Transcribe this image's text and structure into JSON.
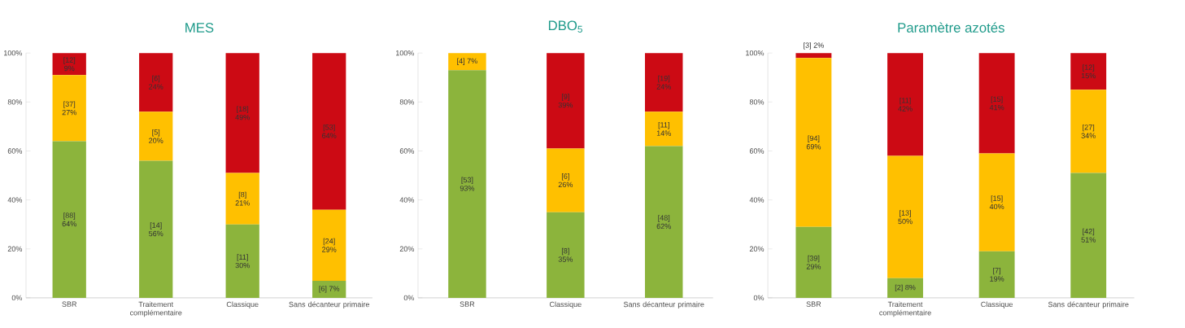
{
  "chart_data": [
    {
      "type": "bar",
      "title": "MES",
      "stacked": true,
      "categories": [
        "SBR",
        "Traitement complémentaire",
        "Classique",
        "Sans décanteur primaire"
      ],
      "ylim": [
        0,
        100
      ],
      "yticks": [
        {
          "value": 0,
          "label": "0%"
        },
        {
          "value": 20,
          "label": "20%"
        },
        {
          "value": 40,
          "label": "40%"
        },
        {
          "value": 60,
          "label": "60%"
        },
        {
          "value": 80,
          "label": "80%"
        },
        {
          "value": 100,
          "label": "100%"
        }
      ],
      "series": [
        {
          "color": "#8cb43c",
          "values": [
            64,
            56,
            30,
            7
          ],
          "value_labels": [
            "[88] 64%",
            "[14] 56%",
            "[11] 30%",
            "[6] 7%"
          ]
        },
        {
          "color": "#ffc000",
          "values": [
            27,
            20,
            21,
            29
          ],
          "value_labels": [
            "[37] 27%",
            "[5] 20%",
            "[8] 21%",
            "[24] 29%"
          ]
        },
        {
          "color": "#cc0a14",
          "values": [
            9,
            24,
            49,
            64
          ],
          "value_labels": [
            "[12] 9%",
            "[6] 24%",
            "[18] 49%",
            "[53] 64%"
          ]
        }
      ]
    },
    {
      "type": "bar",
      "title": "DBO$_{5}$",
      "stacked": true,
      "categories": [
        "SBR",
        "Classique",
        "Sans décanteur primaire"
      ],
      "ylim": [
        0,
        100
      ],
      "yticks": [
        {
          "value": 0,
          "label": "0%"
        },
        {
          "value": 20,
          "label": "20%"
        },
        {
          "value": 40,
          "label": "40%"
        },
        {
          "value": 60,
          "label": "60%"
        },
        {
          "value": 80,
          "label": "80%"
        },
        {
          "value": 100,
          "label": "100%"
        }
      ],
      "series": [
        {
          "color": "#8cb43c",
          "values": [
            93,
            35,
            62
          ],
          "value_labels": [
            "[53] 93%",
            "[8] 35%",
            "[48] 62%"
          ]
        },
        {
          "color": "#ffc000",
          "values": [
            7,
            26,
            14
          ],
          "value_labels": [
            "[4] 7%",
            "[6] 26%",
            "[11] 14%"
          ]
        },
        {
          "color": "#cc0a14",
          "values": [
            0,
            39,
            24
          ],
          "value_labels": [
            null,
            "[9] 39%",
            "[19] 24%"
          ]
        }
      ]
    },
    {
      "type": "bar",
      "title": "Paramètre azotés",
      "stacked": true,
      "categories": [
        "SBR",
        "Traitement complémentaire",
        "Classique",
        "Sans décanteur primaire"
      ],
      "ylim": [
        0,
        100
      ],
      "yticks": [
        {
          "value": 0,
          "label": "0%"
        },
        {
          "value": 20,
          "label": "20%"
        },
        {
          "value": 40,
          "label": "40%"
        },
        {
          "value": 60,
          "label": "60%"
        },
        {
          "value": 80,
          "label": "80%"
        },
        {
          "value": 100,
          "label": "100%"
        }
      ],
      "series": [
        {
          "color": "#8cb43c",
          "values": [
            29,
            8,
            19,
            51
          ],
          "value_labels": [
            "[39] 29%",
            "[2] 8%",
            "[7] 19%",
            "[42] 51%"
          ]
        },
        {
          "color": "#ffc000",
          "values": [
            69,
            50,
            40,
            34
          ],
          "value_labels": [
            "[94] 69%",
            "[13] 50%",
            "[15] 40%",
            "[27] 34%"
          ]
        },
        {
          "color": "#cc0a14",
          "values": [
            2,
            42,
            41,
            15
          ],
          "value_labels": [
            "[3] 2%",
            "[11] 42%",
            "[15] 41%",
            "[12] 15%"
          ]
        }
      ]
    }
  ]
}
